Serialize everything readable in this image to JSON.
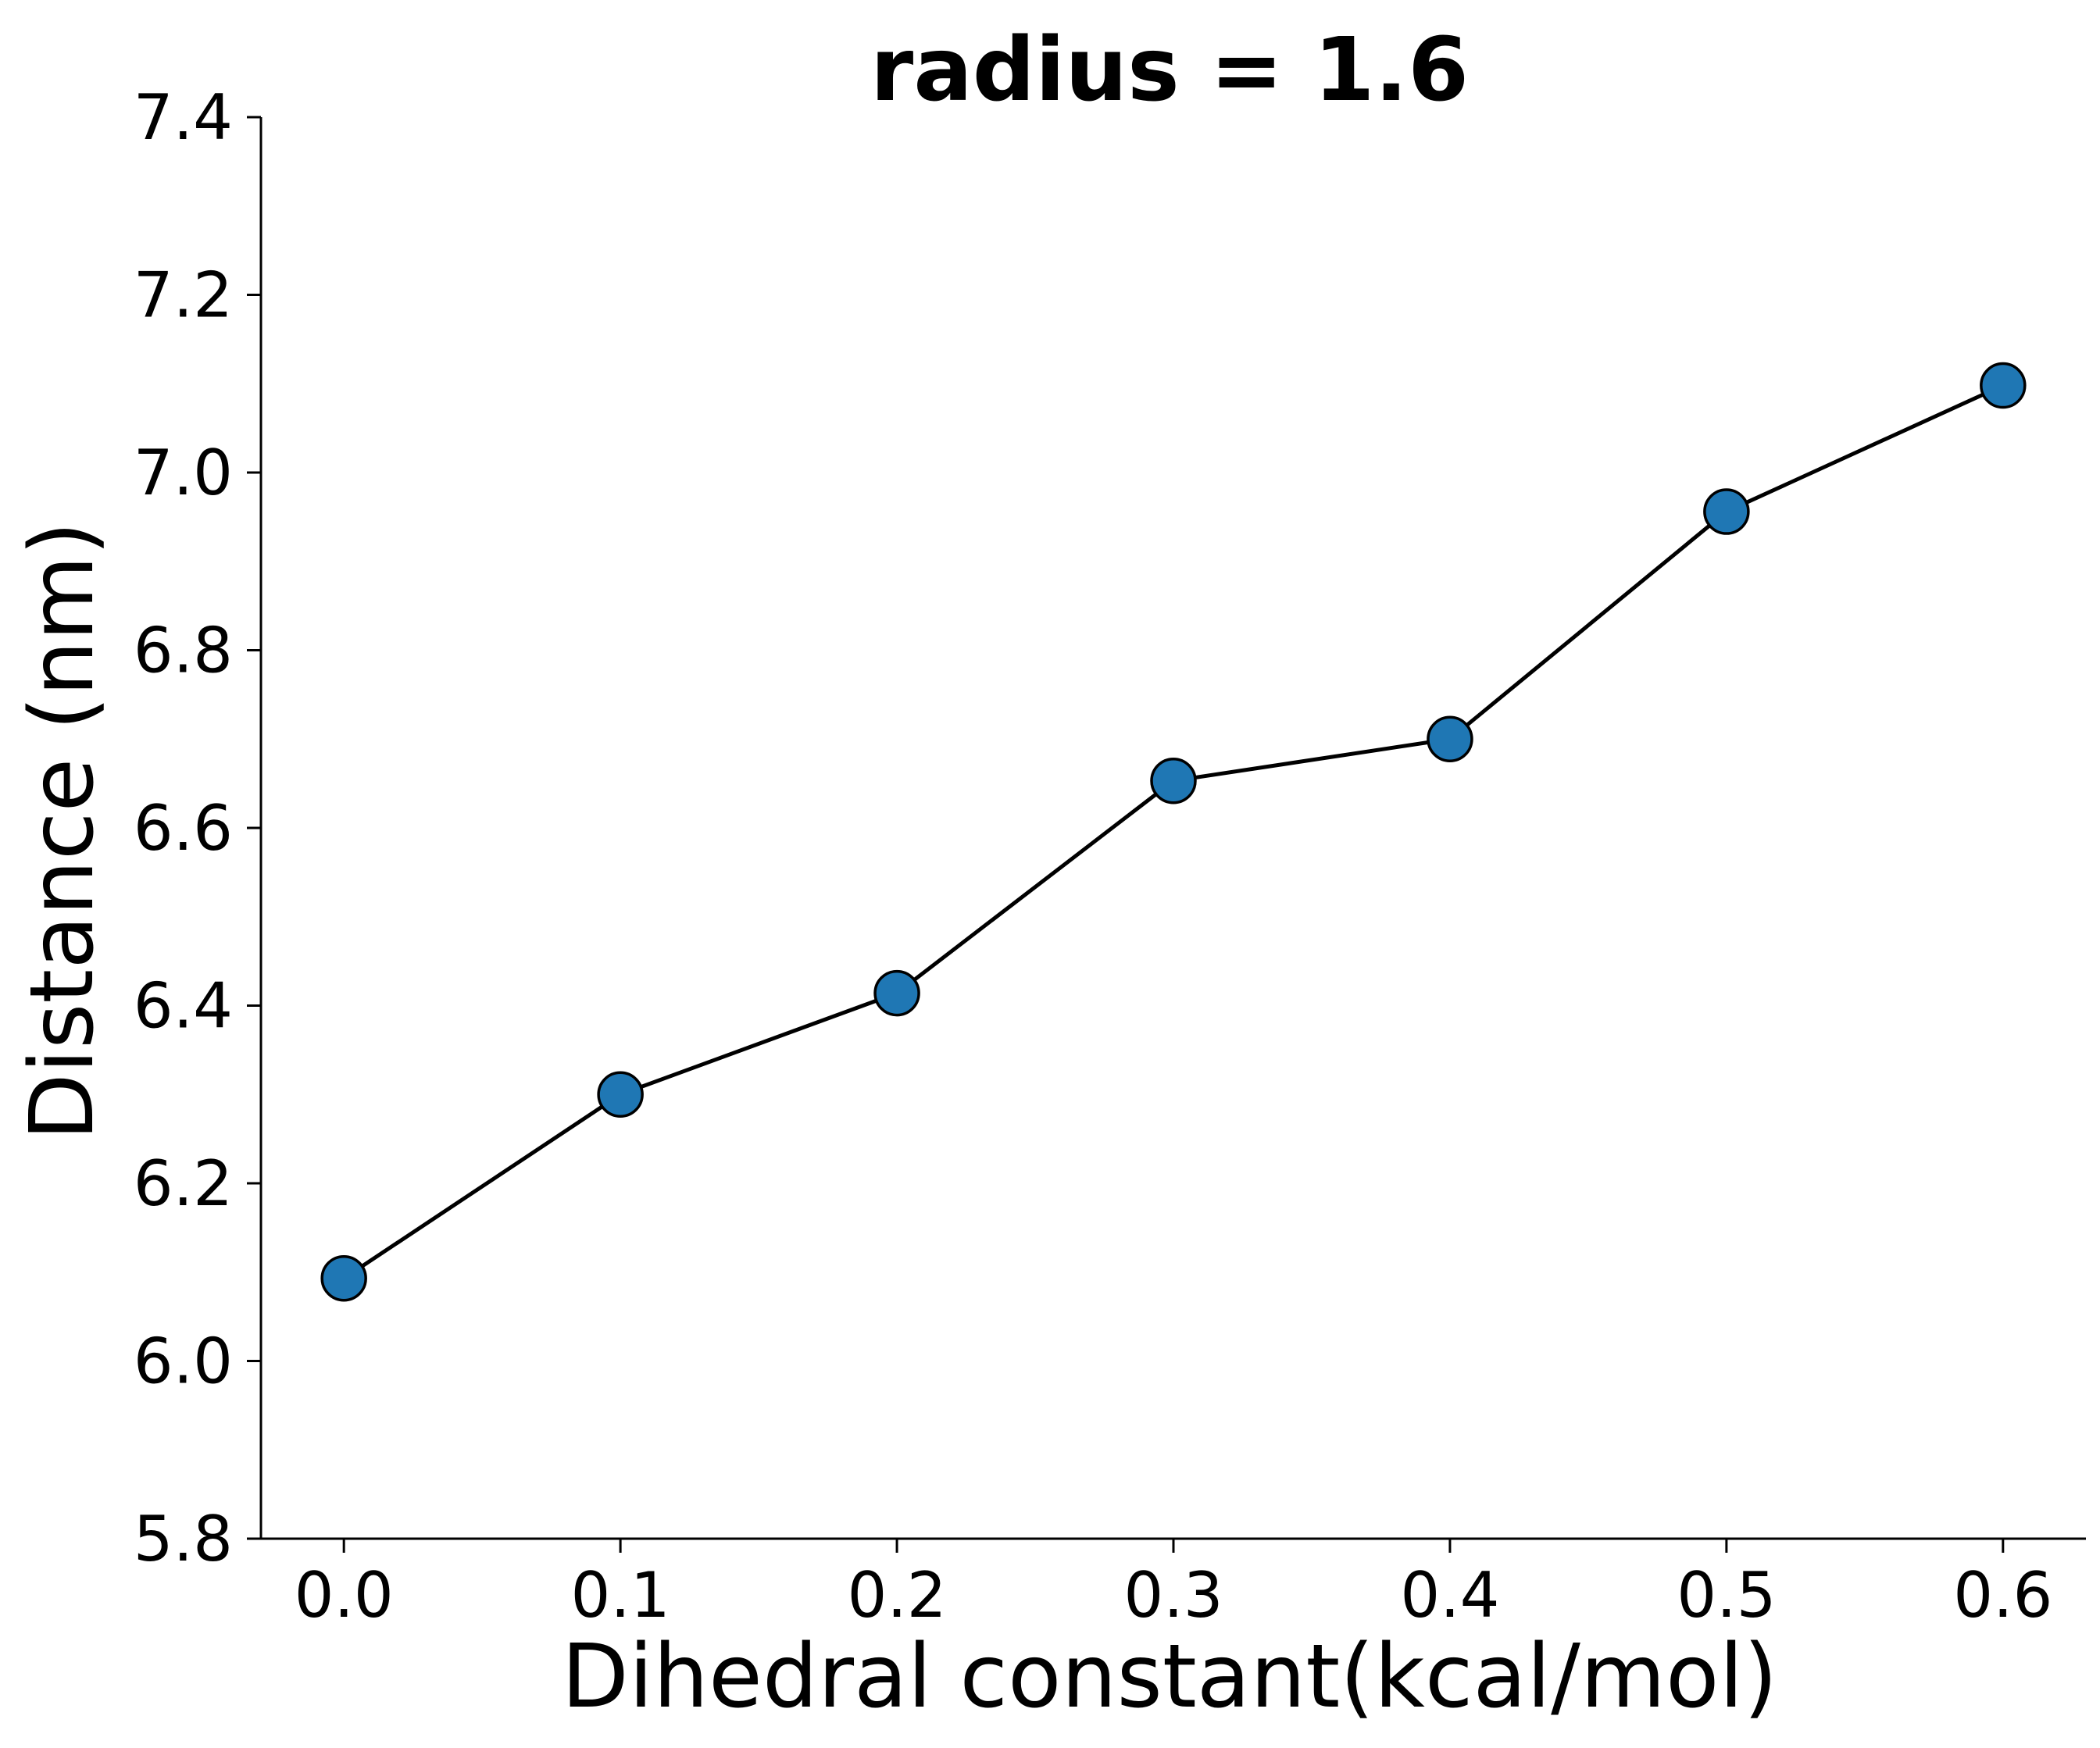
{
  "chart_data": {
    "type": "line",
    "title": "radius = 1.6",
    "xlabel": "Dihedral constant(kcal/mol)",
    "ylabel": "Distance (nm)",
    "xlim": [
      -0.03,
      0.63
    ],
    "ylim": [
      5.8,
      7.4
    ],
    "xticks": [
      "0.0",
      "0.1",
      "0.2",
      "0.3",
      "0.4",
      "0.5",
      "0.6"
    ],
    "yticks": [
      "5.8",
      "6.0",
      "6.2",
      "6.4",
      "6.6",
      "6.8",
      "7.0",
      "7.2",
      "7.4"
    ],
    "x": [
      0.0,
      0.1,
      0.2,
      0.3,
      0.4,
      0.5,
      0.6
    ],
    "series": [
      {
        "values": [
          6.093,
          6.3,
          6.414,
          6.653,
          6.7,
          6.956,
          7.098
        ],
        "line_color": "#000000",
        "marker_color": "#1f77b4",
        "marker_edge_color": "#000000"
      }
    ],
    "grid": false
  }
}
